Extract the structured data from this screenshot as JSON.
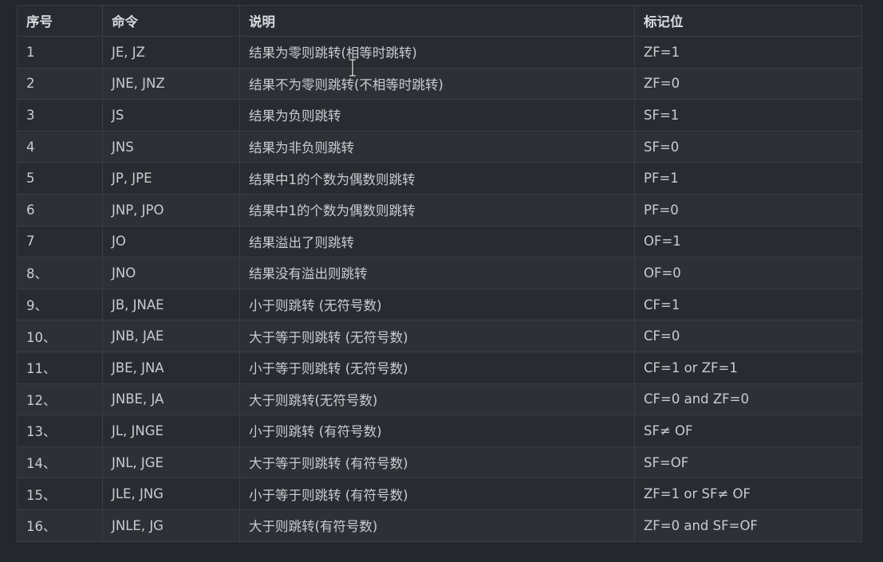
{
  "table": {
    "headers": [
      "序号",
      "命令",
      "说明",
      "标记位"
    ],
    "rows": [
      [
        "1",
        "JE, JZ",
        "结果为零则跳转(相等时跳转)",
        "ZF=1"
      ],
      [
        "2",
        "JNE, JNZ",
        "结果不为零则跳转(不相等时跳转)",
        "ZF=0"
      ],
      [
        "3",
        "JS",
        "结果为负则跳转",
        "SF=1"
      ],
      [
        "4",
        "JNS",
        "结果为非负则跳转",
        "SF=0"
      ],
      [
        "5",
        "JP, JPE",
        "结果中1的个数为偶数则跳转",
        "PF=1"
      ],
      [
        "6",
        "JNP, JPO",
        "结果中1的个数为偶数则跳转",
        "PF=0"
      ],
      [
        "7",
        "JO",
        "结果溢出了则跳转",
        "OF=1"
      ],
      [
        "8、",
        "JNO",
        "结果没有溢出则跳转",
        "OF=0"
      ],
      [
        "9、",
        "JB, JNAE",
        "小于则跳转 (无符号数)",
        "CF=1"
      ],
      [
        "10、",
        "JNB, JAE",
        "大于等于则跳转 (无符号数)",
        "CF=0"
      ],
      [
        "11、",
        "JBE, JNA",
        "小于等于则跳转 (无符号数)",
        "CF=1 or ZF=1"
      ],
      [
        "12、",
        "JNBE, JA",
        "大于则跳转(无符号数)",
        "CF=0 and ZF=0"
      ],
      [
        "13、",
        "JL, JNGE",
        "小于则跳转 (有符号数)",
        "SF≠ OF"
      ],
      [
        "14、",
        "JNL, JGE",
        "大于等于则跳转 (有符号数)",
        "SF=OF"
      ],
      [
        "15、",
        "JLE, JNG",
        "小于等于则跳转 (有符号数)",
        "ZF=1 or SF≠ OF"
      ],
      [
        "16、",
        "JNLE, JG",
        "大于则跳转(有符号数)",
        "ZF=0 and SF=OF"
      ]
    ]
  },
  "colors": {
    "background": "#24272b",
    "row_odd": "#282b30",
    "row_even": "#2d3035",
    "border": "#3a3e44",
    "text": "#c9ccd1"
  },
  "icons": {
    "cursor": "text-cursor-icon"
  }
}
